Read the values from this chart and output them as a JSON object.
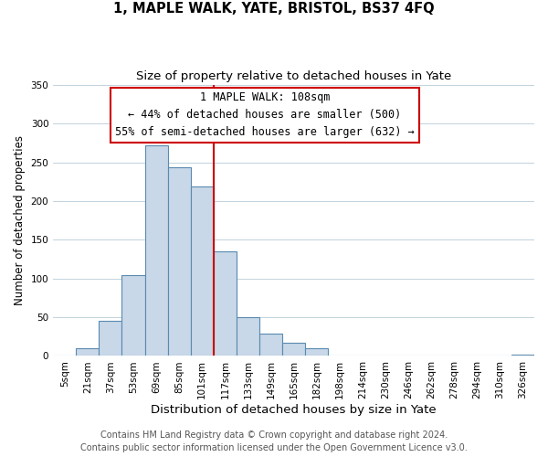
{
  "title": "1, MAPLE WALK, YATE, BRISTOL, BS37 4FQ",
  "subtitle": "Size of property relative to detached houses in Yate",
  "xlabel": "Distribution of detached houses by size in Yate",
  "ylabel": "Number of detached properties",
  "bar_labels": [
    "5sqm",
    "21sqm",
    "37sqm",
    "53sqm",
    "69sqm",
    "85sqm",
    "101sqm",
    "117sqm",
    "133sqm",
    "149sqm",
    "165sqm",
    "182sqm",
    "198sqm",
    "214sqm",
    "230sqm",
    "246sqm",
    "262sqm",
    "278sqm",
    "294sqm",
    "310sqm",
    "326sqm"
  ],
  "bar_heights": [
    0,
    10,
    46,
    104,
    272,
    244,
    219,
    135,
    50,
    29,
    17,
    10,
    0,
    0,
    0,
    0,
    0,
    0,
    0,
    0,
    2
  ],
  "bar_color": "#c8d8e8",
  "bar_edge_color": "#5a8ab0",
  "vline_color": "#cc0000",
  "annotation_text_line1": "1 MAPLE WALK: 108sqm",
  "annotation_text_line2": "← 44% of detached houses are smaller (500)",
  "annotation_text_line3": "55% of semi-detached houses are larger (632) →",
  "annotation_box_color": "#ffffff",
  "annotation_box_edge": "#cc0000",
  "ylim": [
    0,
    350
  ],
  "yticks": [
    0,
    50,
    100,
    150,
    200,
    250,
    300,
    350
  ],
  "footer_line1": "Contains HM Land Registry data © Crown copyright and database right 2024.",
  "footer_line2": "Contains public sector information licensed under the Open Government Licence v3.0.",
  "title_fontsize": 10.5,
  "subtitle_fontsize": 9.5,
  "xlabel_fontsize": 9.5,
  "ylabel_fontsize": 8.5,
  "tick_fontsize": 7.5,
  "annotation_fontsize": 8.5,
  "footer_fontsize": 7
}
